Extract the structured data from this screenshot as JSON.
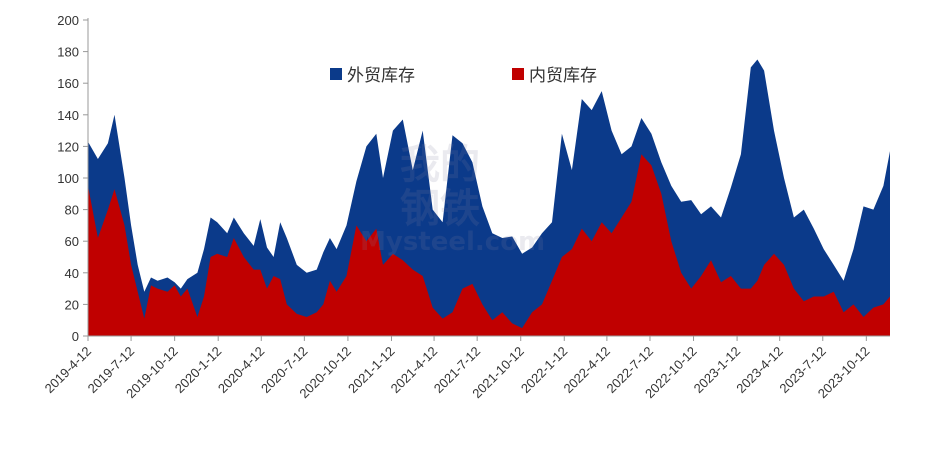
{
  "chart_data": {
    "type": "area",
    "stacked": false,
    "ylim": [
      0,
      200
    ],
    "yticks": [
      0,
      20,
      40,
      60,
      80,
      100,
      120,
      140,
      160,
      180,
      200
    ],
    "xlim": [
      "2019-04-12",
      "2023-12-01"
    ],
    "xtick_labels": [
      "2019-4-12",
      "2019-7-12",
      "2019-10-12",
      "2020-1-12",
      "2020-4-12",
      "2020-7-12",
      "2020-10-12",
      "2021-1-12",
      "2021-4-12",
      "2021-7-12",
      "2021-10-12",
      "2022-1-12",
      "2022-4-12",
      "2022-7-12",
      "2022-10-12",
      "2023-1-12",
      "2023-4-12",
      "2023-7-12",
      "2023-10-12"
    ],
    "legend_position": "top-center",
    "grid": false,
    "series": [
      {
        "name": "外贸库存",
        "color": "#0b3a8a",
        "points": [
          [
            "2019-04-12",
            123
          ],
          [
            "2019-05-03",
            112
          ],
          [
            "2019-05-24",
            122
          ],
          [
            "2019-06-07",
            140
          ],
          [
            "2019-06-28",
            100
          ],
          [
            "2019-07-12",
            70
          ],
          [
            "2019-07-26",
            45
          ],
          [
            "2019-08-09",
            28
          ],
          [
            "2019-08-23",
            37
          ],
          [
            "2019-09-06",
            35
          ],
          [
            "2019-09-27",
            37
          ],
          [
            "2019-10-12",
            34
          ],
          [
            "2019-10-25",
            30
          ],
          [
            "2019-11-08",
            36
          ],
          [
            "2019-11-29",
            40
          ],
          [
            "2019-12-13",
            55
          ],
          [
            "2019-12-27",
            75
          ],
          [
            "2020-01-10",
            72
          ],
          [
            "2020-01-31",
            65
          ],
          [
            "2020-02-14",
            75
          ],
          [
            "2020-03-06",
            65
          ],
          [
            "2020-03-27",
            57
          ],
          [
            "2020-04-10",
            74
          ],
          [
            "2020-04-24",
            56
          ],
          [
            "2020-05-08",
            50
          ],
          [
            "2020-05-22",
            72
          ],
          [
            "2020-06-05",
            62
          ],
          [
            "2020-06-26",
            45
          ],
          [
            "2020-07-17",
            40
          ],
          [
            "2020-08-07",
            42
          ],
          [
            "2020-08-21",
            53
          ],
          [
            "2020-09-04",
            62
          ],
          [
            "2020-09-18",
            55
          ],
          [
            "2020-10-09",
            70
          ],
          [
            "2020-10-30",
            98
          ],
          [
            "2020-11-20",
            120
          ],
          [
            "2020-12-11",
            128
          ],
          [
            "2020-12-25",
            100
          ],
          [
            "2021-01-15",
            130
          ],
          [
            "2021-02-05",
            137
          ],
          [
            "2021-02-26",
            105
          ],
          [
            "2021-03-19",
            130
          ],
          [
            "2021-04-09",
            80
          ],
          [
            "2021-04-30",
            72
          ],
          [
            "2021-05-21",
            127
          ],
          [
            "2021-06-11",
            122
          ],
          [
            "2021-07-02",
            110
          ],
          [
            "2021-07-23",
            82
          ],
          [
            "2021-08-13",
            65
          ],
          [
            "2021-09-03",
            62
          ],
          [
            "2021-09-24",
            63
          ],
          [
            "2021-10-15",
            52
          ],
          [
            "2021-11-05",
            56
          ],
          [
            "2021-11-26",
            65
          ],
          [
            "2021-12-17",
            72
          ],
          [
            "2022-01-07",
            128
          ],
          [
            "2022-01-28",
            105
          ],
          [
            "2022-02-18",
            150
          ],
          [
            "2022-03-11",
            143
          ],
          [
            "2022-04-01",
            155
          ],
          [
            "2022-04-22",
            130
          ],
          [
            "2022-05-13",
            115
          ],
          [
            "2022-06-03",
            120
          ],
          [
            "2022-06-24",
            138
          ],
          [
            "2022-07-15",
            128
          ],
          [
            "2022-08-05",
            110
          ],
          [
            "2022-08-26",
            95
          ],
          [
            "2022-09-16",
            85
          ],
          [
            "2022-10-07",
            86
          ],
          [
            "2022-10-28",
            77
          ],
          [
            "2022-11-18",
            82
          ],
          [
            "2022-12-09",
            75
          ],
          [
            "2022-12-30",
            94
          ],
          [
            "2023-01-20",
            115
          ],
          [
            "2023-02-10",
            170
          ],
          [
            "2023-02-24",
            175
          ],
          [
            "2023-03-10",
            168
          ],
          [
            "2023-03-31",
            130
          ],
          [
            "2023-04-21",
            100
          ],
          [
            "2023-05-12",
            75
          ],
          [
            "2023-06-02",
            80
          ],
          [
            "2023-06-23",
            68
          ],
          [
            "2023-07-14",
            55
          ],
          [
            "2023-08-04",
            45
          ],
          [
            "2023-08-25",
            35
          ],
          [
            "2023-09-15",
            55
          ],
          [
            "2023-10-06",
            82
          ],
          [
            "2023-10-27",
            80
          ],
          [
            "2023-11-17",
            95
          ],
          [
            "2023-12-01",
            117
          ]
        ]
      },
      {
        "name": "内贸库存",
        "color": "#c00000",
        "points": [
          [
            "2019-04-12",
            95
          ],
          [
            "2019-05-03",
            62
          ],
          [
            "2019-05-24",
            80
          ],
          [
            "2019-06-07",
            93
          ],
          [
            "2019-06-28",
            70
          ],
          [
            "2019-07-12",
            45
          ],
          [
            "2019-07-26",
            28
          ],
          [
            "2019-08-09",
            11
          ],
          [
            "2019-08-23",
            32
          ],
          [
            "2019-09-06",
            30
          ],
          [
            "2019-09-27",
            28
          ],
          [
            "2019-10-12",
            32
          ],
          [
            "2019-10-25",
            25
          ],
          [
            "2019-11-08",
            30
          ],
          [
            "2019-11-29",
            12
          ],
          [
            "2019-12-13",
            25
          ],
          [
            "2019-12-27",
            50
          ],
          [
            "2020-01-10",
            52
          ],
          [
            "2020-01-31",
            50
          ],
          [
            "2020-02-14",
            62
          ],
          [
            "2020-03-06",
            50
          ],
          [
            "2020-03-27",
            42
          ],
          [
            "2020-04-10",
            42
          ],
          [
            "2020-04-24",
            30
          ],
          [
            "2020-05-08",
            38
          ],
          [
            "2020-05-22",
            36
          ],
          [
            "2020-06-05",
            20
          ],
          [
            "2020-06-26",
            14
          ],
          [
            "2020-07-17",
            12
          ],
          [
            "2020-08-07",
            15
          ],
          [
            "2020-08-21",
            20
          ],
          [
            "2020-09-04",
            35
          ],
          [
            "2020-09-18",
            28
          ],
          [
            "2020-10-09",
            38
          ],
          [
            "2020-10-30",
            70
          ],
          [
            "2020-11-20",
            60
          ],
          [
            "2020-12-11",
            68
          ],
          [
            "2020-12-25",
            45
          ],
          [
            "2021-01-15",
            52
          ],
          [
            "2021-02-05",
            48
          ],
          [
            "2021-02-26",
            42
          ],
          [
            "2021-03-19",
            38
          ],
          [
            "2021-04-09",
            18
          ],
          [
            "2021-04-30",
            11
          ],
          [
            "2021-05-21",
            15
          ],
          [
            "2021-06-11",
            30
          ],
          [
            "2021-07-02",
            33
          ],
          [
            "2021-07-23",
            20
          ],
          [
            "2021-08-13",
            10
          ],
          [
            "2021-09-03",
            15
          ],
          [
            "2021-09-24",
            8
          ],
          [
            "2021-10-15",
            5
          ],
          [
            "2021-11-05",
            15
          ],
          [
            "2021-11-26",
            20
          ],
          [
            "2021-12-17",
            35
          ],
          [
            "2022-01-07",
            50
          ],
          [
            "2022-01-28",
            55
          ],
          [
            "2022-02-18",
            68
          ],
          [
            "2022-03-11",
            60
          ],
          [
            "2022-04-01",
            72
          ],
          [
            "2022-04-22",
            65
          ],
          [
            "2022-05-13",
            75
          ],
          [
            "2022-06-03",
            85
          ],
          [
            "2022-06-24",
            115
          ],
          [
            "2022-07-15",
            108
          ],
          [
            "2022-08-05",
            90
          ],
          [
            "2022-08-26",
            60
          ],
          [
            "2022-09-16",
            40
          ],
          [
            "2022-10-07",
            30
          ],
          [
            "2022-10-28",
            38
          ],
          [
            "2022-11-18",
            48
          ],
          [
            "2022-12-09",
            34
          ],
          [
            "2022-12-30",
            38
          ],
          [
            "2023-01-20",
            30
          ],
          [
            "2023-02-10",
            30
          ],
          [
            "2023-02-24",
            35
          ],
          [
            "2023-03-10",
            45
          ],
          [
            "2023-03-31",
            52
          ],
          [
            "2023-04-21",
            45
          ],
          [
            "2023-05-12",
            30
          ],
          [
            "2023-06-02",
            22
          ],
          [
            "2023-06-23",
            25
          ],
          [
            "2023-07-14",
            25
          ],
          [
            "2023-08-04",
            28
          ],
          [
            "2023-08-25",
            15
          ],
          [
            "2023-09-15",
            20
          ],
          [
            "2023-10-06",
            12
          ],
          [
            "2023-10-27",
            18
          ],
          [
            "2023-11-17",
            20
          ],
          [
            "2023-12-01",
            25
          ]
        ]
      }
    ]
  },
  "watermark": {
    "line1": "我的",
    "line2": "钢铁",
    "brand": "Mysteel.com"
  }
}
